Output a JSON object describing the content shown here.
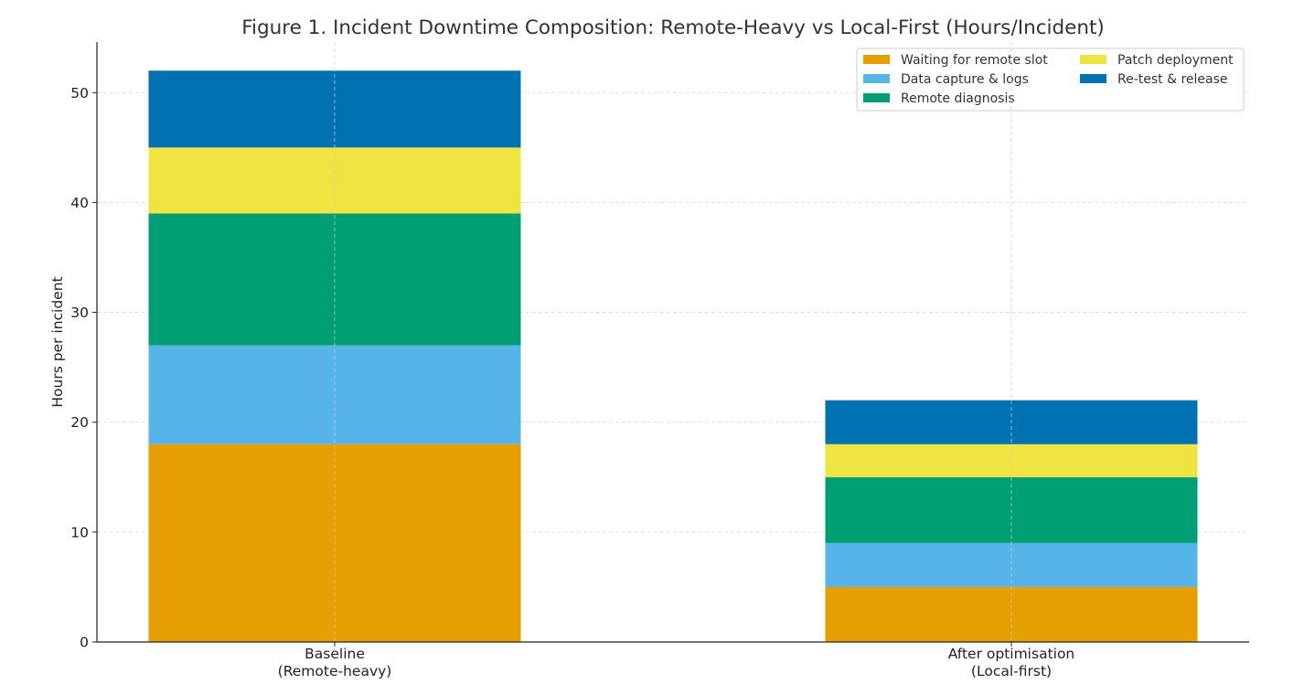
{
  "chart_data": {
    "type": "bar",
    "stacked": true,
    "title": "Figure 1. Incident Downtime Composition: Remote-Heavy vs Local-First (Hours/Incident)",
    "xlabel": "",
    "ylabel": "Hours per incident",
    "ylim": [
      0,
      54.6
    ],
    "yticks": [
      0,
      10,
      20,
      30,
      40,
      50
    ],
    "grid": true,
    "legend_position": "top-right",
    "categories": [
      [
        "Baseline",
        "(Remote-heavy)"
      ],
      [
        "After optimisation",
        "(Local-first)"
      ]
    ],
    "series": [
      {
        "name": "Waiting for remote slot",
        "color": "#E69F00",
        "values": [
          18,
          5
        ]
      },
      {
        "name": "Data capture & logs",
        "color": "#56B4E9",
        "values": [
          9,
          4
        ]
      },
      {
        "name": "Remote diagnosis",
        "color": "#009E73",
        "values": [
          12,
          6
        ]
      },
      {
        "name": "Patch deployment",
        "color": "#F0E442",
        "values": [
          6,
          3
        ]
      },
      {
        "name": "Re-test & release",
        "color": "#0072B2",
        "values": [
          7,
          4
        ]
      }
    ]
  }
}
